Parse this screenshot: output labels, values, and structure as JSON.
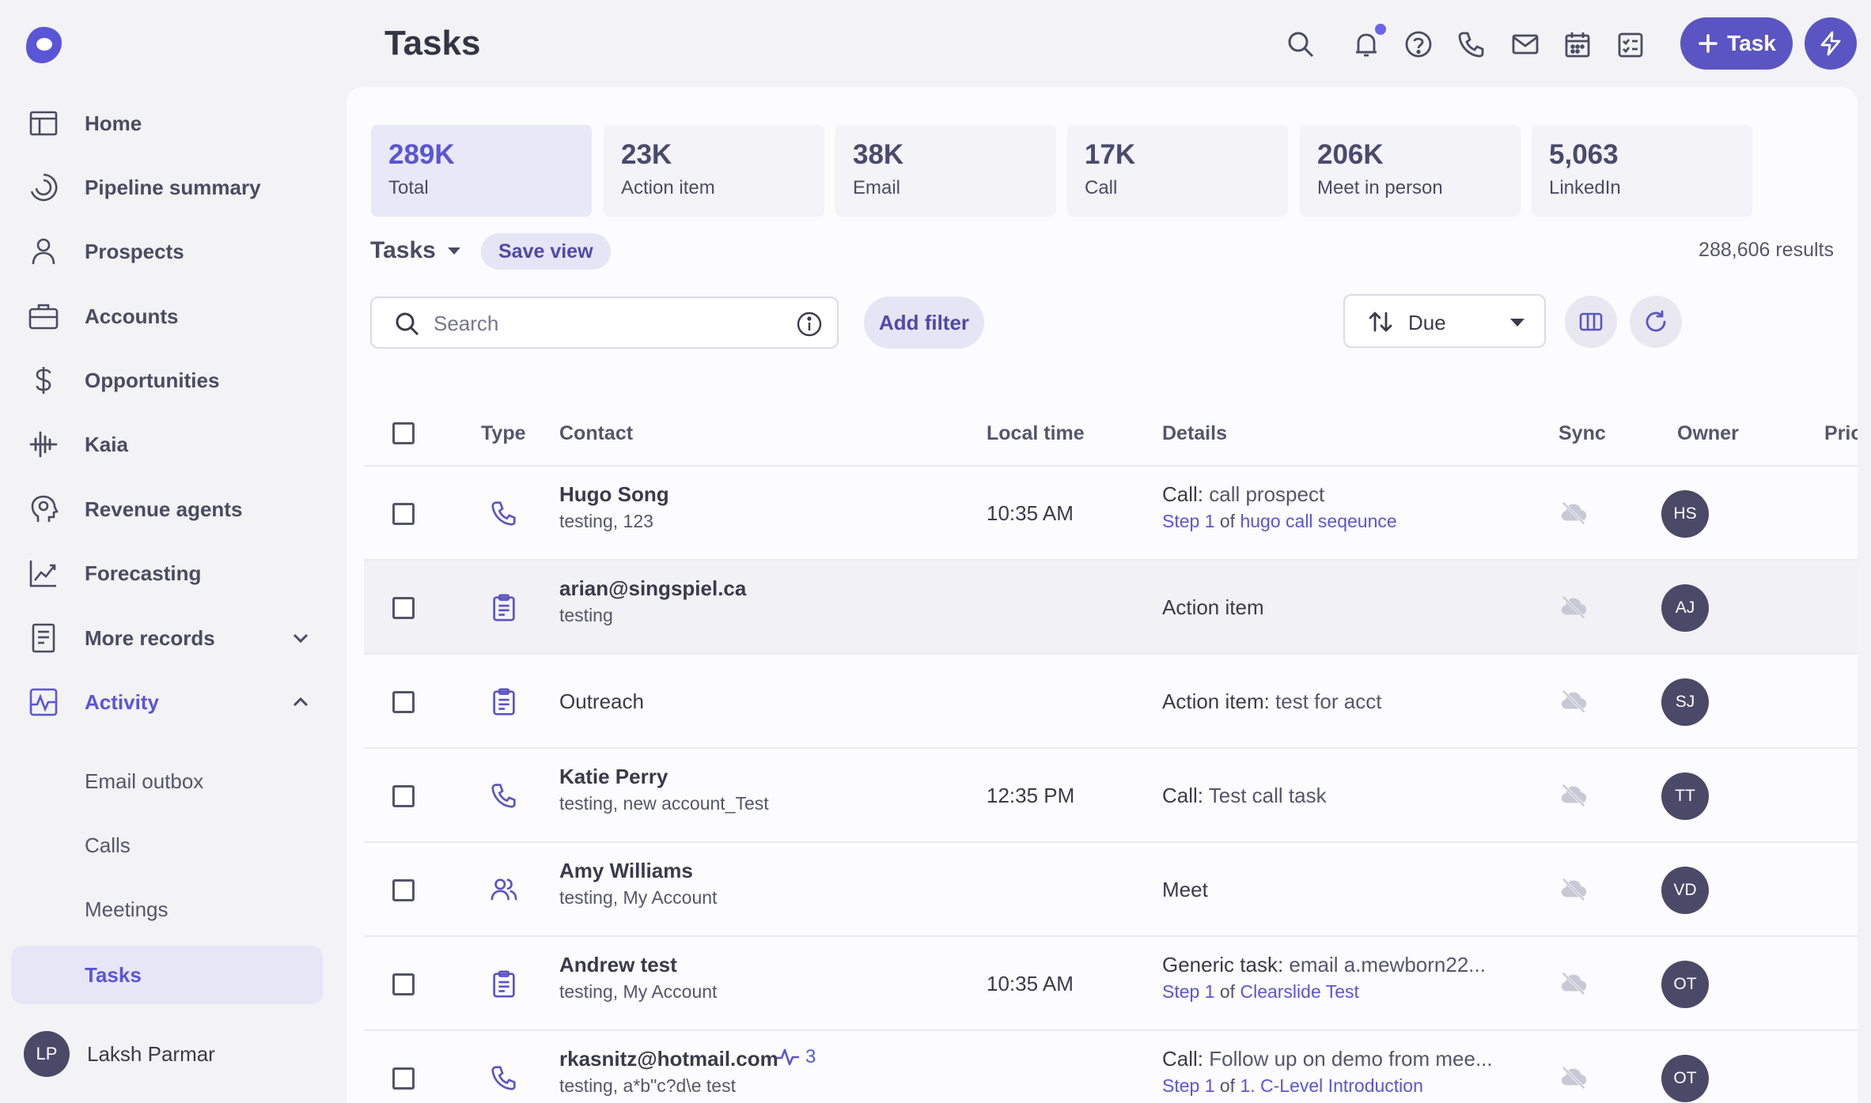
{
  "sidebar": {
    "items": [
      {
        "label": "Home"
      },
      {
        "label": "Pipeline summary"
      },
      {
        "label": "Prospects"
      },
      {
        "label": "Accounts"
      },
      {
        "label": "Opportunities"
      },
      {
        "label": "Kaia"
      },
      {
        "label": "Revenue agents"
      },
      {
        "label": "Forecasting"
      },
      {
        "label": "More records"
      },
      {
        "label": "Activity"
      }
    ],
    "activity_sub": [
      {
        "label": "Email outbox"
      },
      {
        "label": "Calls"
      },
      {
        "label": "Meetings"
      },
      {
        "label": "Tasks"
      }
    ],
    "user": {
      "initials": "LP",
      "name": "Laksh Parmar"
    }
  },
  "header": {
    "title": "Tasks",
    "task_button": "Task"
  },
  "stats": [
    {
      "value": "289K",
      "label": "Total"
    },
    {
      "value": "23K",
      "label": "Action item"
    },
    {
      "value": "38K",
      "label": "Email"
    },
    {
      "value": "17K",
      "label": "Call"
    },
    {
      "value": "206K",
      "label": "Meet in person"
    },
    {
      "value": "5,063",
      "label": "LinkedIn"
    }
  ],
  "toolbar": {
    "view_label": "Tasks",
    "save_view": "Save view",
    "results": "288,606 results",
    "search_placeholder": "Search",
    "add_filter": "Add filter",
    "sort_label": "Due"
  },
  "table": {
    "headers": {
      "type": "Type",
      "contact": "Contact",
      "local_time": "Local time",
      "details": "Details",
      "sync": "Sync",
      "owner": "Owner",
      "priority": "Priori"
    },
    "rows": [
      {
        "type": "phone-icon",
        "name": "Hugo Song",
        "sub": "testing, 123",
        "time": "10:35 AM",
        "detail_bold": "Call:",
        "detail_rest": " call prospect",
        "step_a": "Step 1",
        "step_of": " of ",
        "step_b": "hugo call seqeunce",
        "owner": "HS"
      },
      {
        "type": "clipboard-icon",
        "name": "arian@singspiel.ca",
        "sub": "testing",
        "time": "",
        "detail_bold": "Action item",
        "detail_rest": "",
        "owner": "AJ"
      },
      {
        "type": "clipboard-icon",
        "name": "Outreach",
        "sub": "",
        "time": "",
        "detail_bold": "Action item:",
        "detail_rest": " test for acct",
        "owner": "SJ"
      },
      {
        "type": "phone-icon",
        "name": "Katie Perry",
        "sub": "testing, new account_Test",
        "time": "12:35 PM",
        "detail_bold": "Call:",
        "detail_rest": " Test call task",
        "owner": "TT"
      },
      {
        "type": "people-icon",
        "name": "Amy Williams",
        "sub": "testing, My Account",
        "time": "",
        "detail_bold": "Meet",
        "detail_rest": "",
        "owner": "VD"
      },
      {
        "type": "clipboard-icon",
        "name": "Andrew test",
        "sub": "testing, My Account",
        "time": "10:35 AM",
        "detail_bold": "Generic task:",
        "detail_rest": " email a.mewborn22...",
        "step_a": "Step 1",
        "step_of": " of ",
        "step_b": "Clearslide Test",
        "owner": "OT"
      },
      {
        "type": "phone-icon",
        "name": "rkasnitz@hotmail.com",
        "seq_count": "3",
        "sub": "testing, a*b\"c?d\\e test",
        "time": "",
        "detail_bold": "Call:",
        "detail_rest": " Follow up on demo from mee...",
        "step_a": "Step 1",
        "step_of": " of ",
        "step_b": "1. C-Level Introduction",
        "owner": "OT"
      }
    ]
  },
  "colors": {
    "accent": "#5a55d6",
    "button": "#5a55c2",
    "avatar": "#4a4968",
    "selected_bg": "#e7e6f7"
  }
}
